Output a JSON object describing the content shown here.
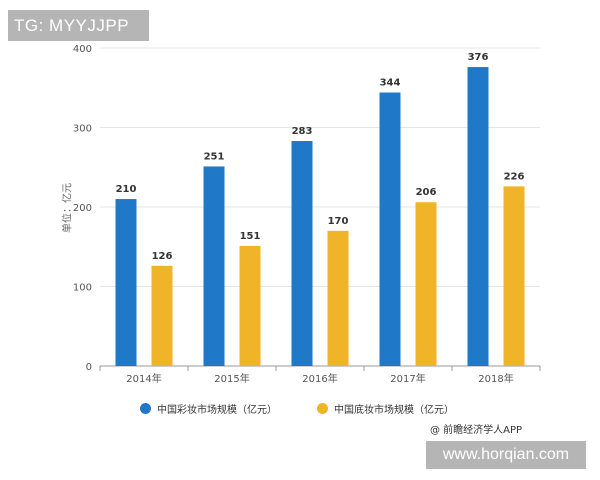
{
  "overlay": {
    "top_left_tag": "TG: MYYJJPP",
    "bottom_right_url": "www.horqian.com",
    "source": "@ 前瞻经济学人APP"
  },
  "colors": {
    "series1": "#1f78c8",
    "series2": "#f0b428",
    "grid": "#e6e6e6",
    "axis": "#999999"
  },
  "chart_data": {
    "type": "bar",
    "title": "",
    "xlabel": "",
    "ylabel": "单位：亿元",
    "categories": [
      "2014年",
      "2015年",
      "2016年",
      "2017年",
      "2018年"
    ],
    "ylim": [
      0,
      400
    ],
    "yticks": [
      0,
      100,
      200,
      300,
      400
    ],
    "grid": true,
    "legend_position": "bottom",
    "series": [
      {
        "name": "中国彩妆市场规模（亿元）",
        "values": [
          210,
          251,
          283,
          344,
          376
        ]
      },
      {
        "name": "中国底妆市场规模（亿元）",
        "values": [
          126,
          151,
          170,
          206,
          226
        ]
      }
    ]
  }
}
